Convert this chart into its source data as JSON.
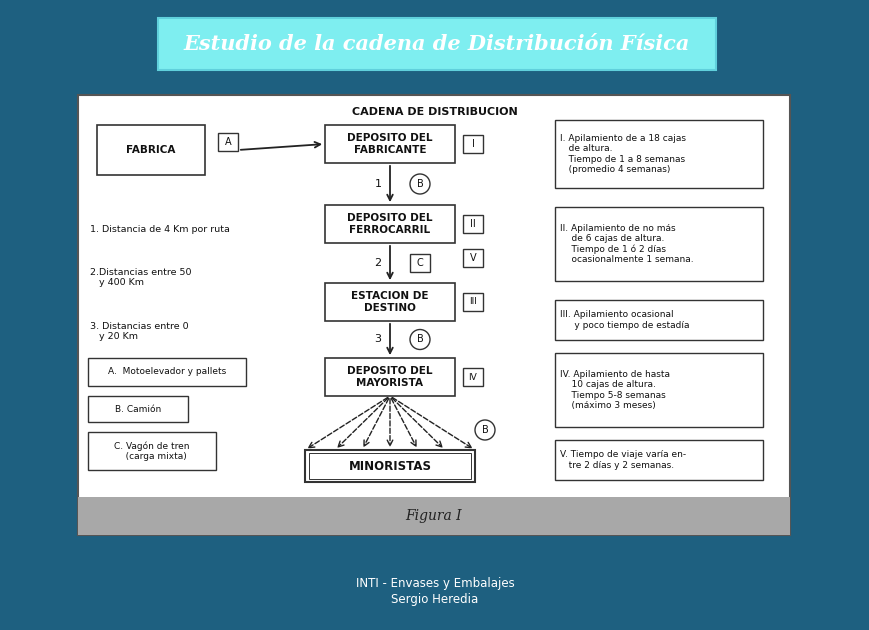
{
  "bg_color": "#1e6080",
  "title_text": "Estudio de la cadena de Distribución Física",
  "title_bg": "#7eeef0",
  "title_color": "white",
  "footer_bg": "#a0a0a0",
  "footer_text": "Figura I",
  "subtitle_text1": "INTI - Envases y Embalajes",
  "subtitle_text2": "Sergio Heredia",
  "cadena_title": "CADENA DE DISTRIBUCION"
}
